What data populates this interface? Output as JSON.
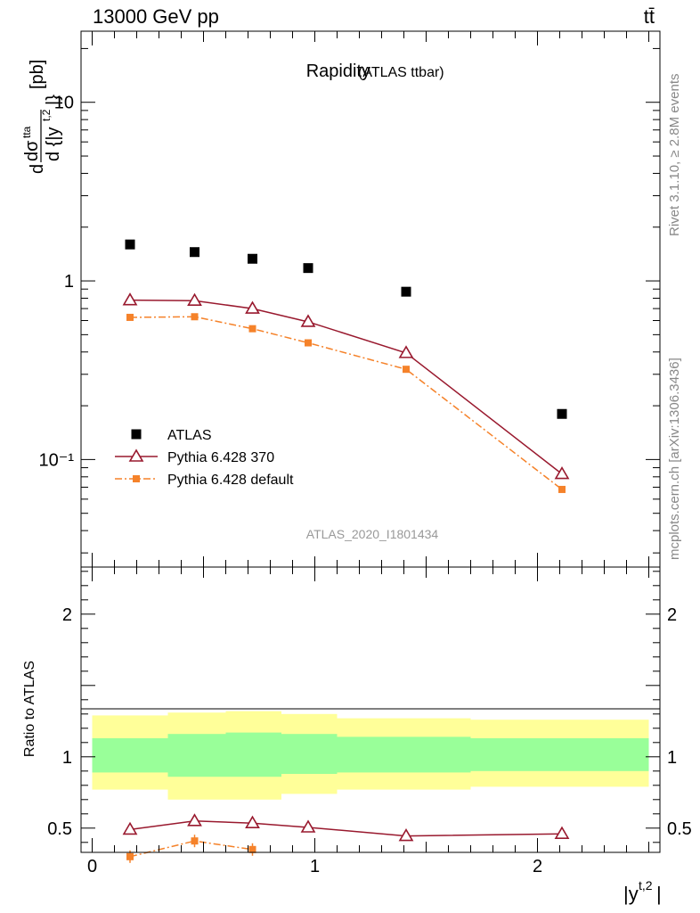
{
  "header": {
    "energy_label": "13000 GeV pp",
    "process_label": "tt̄"
  },
  "side_labels": {
    "rivet": "Rivet 3.1.10, ≥ 2.8M events",
    "mcplots": "mcplots.cern.ch [arXiv:1306.3436]"
  },
  "chart_data": [
    {
      "type": "scatter",
      "title": "Rapidity",
      "subtitle": "(ATLAS ttbar)",
      "ylabel": "d dσᵗᵗᵃ / d{|yᵗ,²|} [pb]",
      "yscale": "log",
      "ylim": [
        0.025,
        25
      ],
      "xlim": [
        -0.05,
        2.55
      ],
      "y_ticks": [
        "10⁻¹",
        "1",
        "10"
      ],
      "legend_position": "bottom-left",
      "watermark": "ATLAS_2020_I1801434",
      "series": [
        {
          "name": "ATLAS",
          "color": "#000000",
          "marker": "square",
          "x": [
            0.17,
            0.46,
            0.72,
            0.97,
            1.41,
            2.11
          ],
          "y": [
            1.6,
            1.45,
            1.33,
            1.18,
            0.87,
            0.18
          ]
        },
        {
          "name": "Pythia 6.428 370",
          "color": "#99192e",
          "marker": "triangle-open",
          "line": "solid",
          "x": [
            0.17,
            0.46,
            0.72,
            0.97,
            1.41,
            2.11
          ],
          "y": [
            0.78,
            0.775,
            0.7,
            0.59,
            0.395,
            0.083
          ]
        },
        {
          "name": "Pythia 6.428 default",
          "color": "#f5822a",
          "marker": "square-small",
          "line": "dash-dot",
          "x": [
            0.17,
            0.46,
            0.72,
            0.97,
            1.41,
            2.11
          ],
          "y": [
            0.625,
            0.63,
            0.54,
            0.45,
            0.32,
            0.068
          ]
        }
      ]
    },
    {
      "type": "line",
      "ylabel": "Ratio to ATLAS",
      "xlabel": "|yᵗ,²|",
      "ylim": [
        0.33,
        2.33
      ],
      "xlim": [
        -0.05,
        2.55
      ],
      "x_ticks": [
        "0",
        "1",
        "2"
      ],
      "y_ticks": [
        "0.5",
        "1",
        "2"
      ],
      "reference_line": 1,
      "bands": {
        "edges": [
          0,
          0.34,
          0.6,
          0.85,
          1.1,
          1.7,
          2.5
        ],
        "outer_yellow": [
          [
            0.77,
            1.29
          ],
          [
            0.7,
            1.31
          ],
          [
            0.7,
            1.32
          ],
          [
            0.74,
            1.3
          ],
          [
            0.77,
            1.27
          ],
          [
            0.79,
            1.26
          ]
        ],
        "inner_green": [
          [
            0.89,
            1.13
          ],
          [
            0.86,
            1.16
          ],
          [
            0.86,
            1.17
          ],
          [
            0.88,
            1.16
          ],
          [
            0.89,
            1.14
          ],
          [
            0.9,
            1.13
          ]
        ],
        "outer_color": "#ffff99",
        "inner_color": "#99ff99"
      },
      "series": [
        {
          "name": "Pythia 6.428 370",
          "color": "#99192e",
          "x": [
            0.17,
            0.46,
            0.72,
            0.97,
            1.41,
            2.11
          ],
          "y": [
            0.49,
            0.55,
            0.535,
            0.505,
            0.445,
            0.46
          ]
        },
        {
          "name": "Pythia 6.428 default",
          "color": "#f5822a",
          "x": [
            0.17,
            0.46,
            0.72
          ],
          "y": [
            0.3,
            0.41,
            0.35
          ]
        }
      ]
    }
  ]
}
